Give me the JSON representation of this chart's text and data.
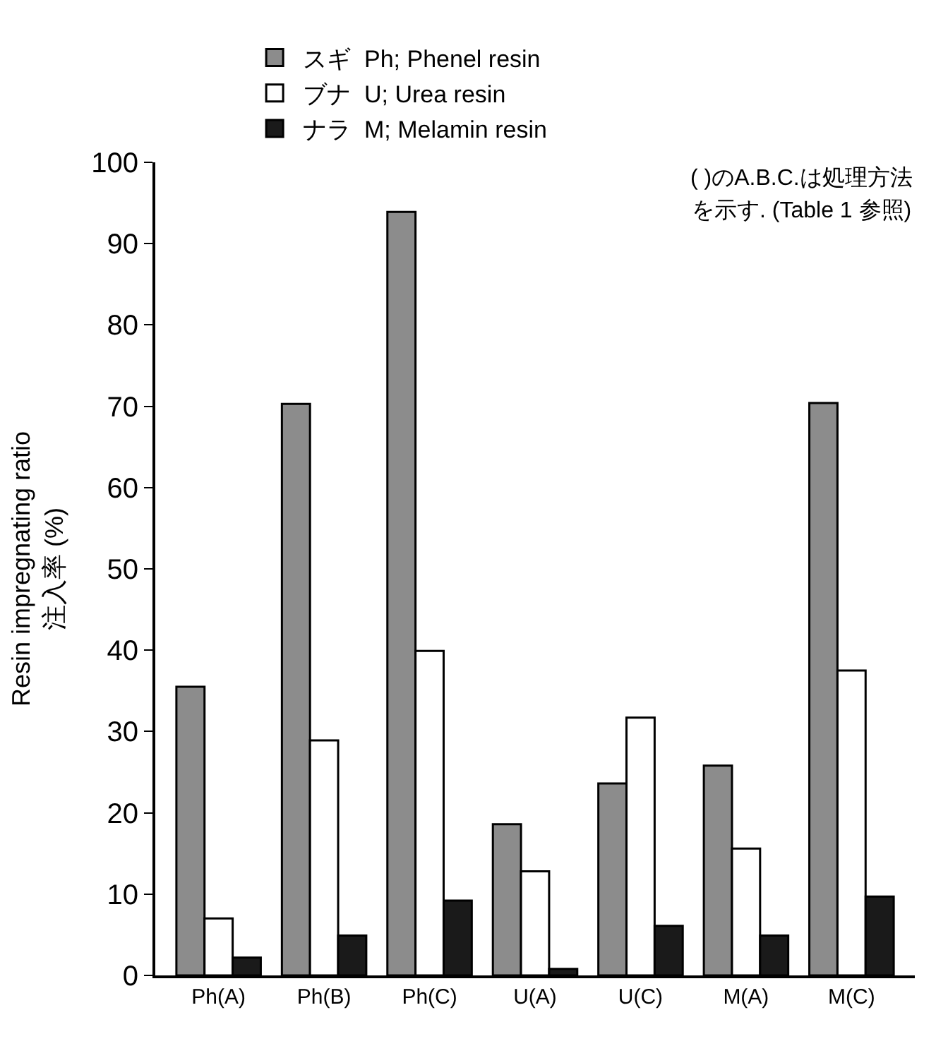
{
  "chart_data": {
    "type": "bar",
    "categories": [
      "Ph(A)",
      "Ph(B)",
      "Ph(C)",
      "U(A)",
      "U(C)",
      "M(A)",
      "M(C)"
    ],
    "series": [
      {
        "name": "スギ  Ph; Phenel resin",
        "color": "#8c8c8c",
        "values": [
          35.5,
          70.3,
          93.9,
          18.6,
          23.6,
          25.8,
          70.4
        ]
      },
      {
        "name": "ブナ  U; Urea resin",
        "color": "#ffffff",
        "values": [
          7.0,
          28.9,
          39.9,
          12.8,
          31.7,
          15.6,
          37.5
        ]
      },
      {
        "name": "ナラ  M; Melamin resin",
        "color": "#1a1a1a",
        "values": [
          2.2,
          4.9,
          9.2,
          0.8,
          6.1,
          4.9,
          9.7
        ]
      }
    ],
    "ylabel": "Resin impregnating ratio\n注入率 (%)",
    "ylim": [
      0,
      100
    ],
    "yticks": [
      0,
      10,
      20,
      30,
      40,
      50,
      60,
      70,
      80,
      90,
      100
    ],
    "annotations": [
      "( )のA.B.C.は処理方法",
      "を示す. (Table 1 参照)"
    ],
    "grid": false,
    "legend": "top"
  }
}
